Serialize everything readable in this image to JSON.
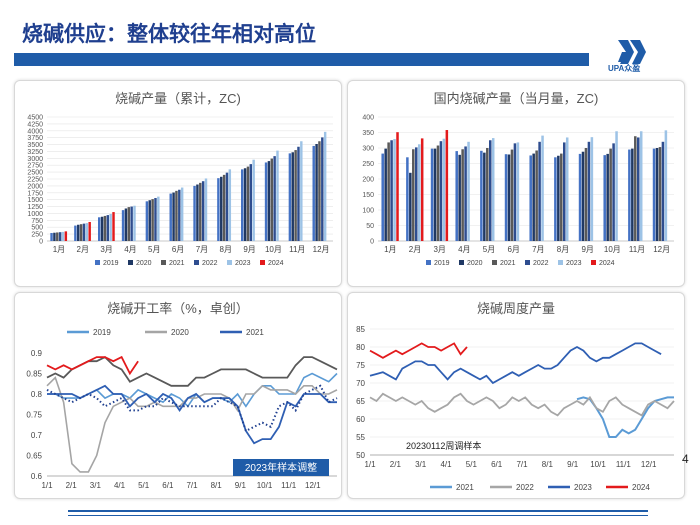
{
  "page": {
    "title": "烧碱供应：整体较往年相对高位",
    "logo_text": "UPA众盈",
    "page_number": "4"
  },
  "colors": {
    "c2019": "#4472c4",
    "c2020": "#1f3864",
    "c2021": "#595959",
    "c2022": "#2e4d8f",
    "c2023": "#9dc3e6",
    "c2024": "#e31a1c",
    "line2021": "#5b9bd5",
    "line2022": "#a6a6a6",
    "line2023": "#2f5fb3",
    "line2024": "#e31a1c",
    "line2020": "#a5a5a5",
    "line2019": "#5b9bd5"
  },
  "chart_data": [
    {
      "id": "cumulative",
      "type": "bar",
      "title": "烧碱产量（累计，ZC)",
      "categories": [
        "1月",
        "2月",
        "3月",
        "4月",
        "5月",
        "6月",
        "7月",
        "8月",
        "9月",
        "10月",
        "11月",
        "12月"
      ],
      "ylim": [
        0,
        4500
      ],
      "yticks": [
        0,
        250,
        500,
        750,
        1000,
        1250,
        1500,
        1750,
        2000,
        2250,
        2500,
        2750,
        3000,
        3250,
        3500,
        3750,
        4000,
        4250,
        4500
      ],
      "series": [
        {
          "name": "2019",
          "values": [
            290,
            560,
            860,
            1120,
            1440,
            1720,
            2000,
            2280,
            2600,
            2850,
            3180,
            3450
          ]
        },
        {
          "name": "2020",
          "values": [
            300,
            590,
            880,
            1180,
            1480,
            1760,
            2050,
            2330,
            2640,
            2900,
            3220,
            3520
          ]
        },
        {
          "name": "2021",
          "values": [
            310,
            610,
            910,
            1230,
            1520,
            1820,
            2110,
            2400,
            2700,
            2990,
            3300,
            3620
          ]
        },
        {
          "name": "2022",
          "values": [
            320,
            630,
            940,
            1250,
            1560,
            1860,
            2170,
            2480,
            2790,
            3080,
            3420,
            3760
          ]
        },
        {
          "name": "2023",
          "values": [
            330,
            650,
            980,
            1280,
            1610,
            1940,
            2270,
            2600,
            2950,
            3280,
            3620,
            3960
          ]
        },
        {
          "name": "2024",
          "values": [
            350,
            690,
            1050,
            null,
            null,
            null,
            null,
            null,
            null,
            null,
            null,
            null
          ]
        }
      ],
      "legend_position": "bottom"
    },
    {
      "id": "monthly",
      "type": "bar",
      "title": "国内烧碱产量（当月量，ZC)",
      "categories": [
        "1月",
        "2月",
        "3月",
        "4月",
        "5月",
        "6月",
        "7月",
        "8月",
        "9月",
        "10月",
        "11月",
        "12月"
      ],
      "ylim": [
        0,
        400
      ],
      "yticks": [
        0,
        50,
        100,
        150,
        200,
        250,
        300,
        350,
        400
      ],
      "series": [
        {
          "name": "2019",
          "values": [
            282,
            270,
            298,
            290,
            291,
            280,
            276,
            270,
            281,
            277,
            295,
            298
          ]
        },
        {
          "name": "2020",
          "values": [
            298,
            220,
            298,
            278,
            285,
            279,
            282,
            275,
            288,
            281,
            298,
            300
          ]
        },
        {
          "name": "2021",
          "values": [
            318,
            296,
            308,
            296,
            300,
            295,
            292,
            282,
            300,
            298,
            338,
            303
          ]
        },
        {
          "name": "2022",
          "values": [
            325,
            302,
            322,
            305,
            325,
            315,
            320,
            318,
            320,
            315,
            334,
            320
          ]
        },
        {
          "name": "2023",
          "values": [
            329,
            312,
            330,
            320,
            332,
            318,
            340,
            334,
            335,
            354,
            354,
            357
          ]
        },
        {
          "name": "2024",
          "values": [
            351,
            331,
            358,
            null,
            null,
            null,
            null,
            null,
            null,
            null,
            null,
            null
          ]
        }
      ],
      "legend_position": "bottom"
    },
    {
      "id": "operating_rate",
      "type": "line",
      "title": "烧碱开工率（%，卓创）",
      "x_ticks": [
        "1/1",
        "2/1",
        "3/1",
        "4/1",
        "5/1",
        "6/1",
        "7/1",
        "8/1",
        "9/1",
        "10/1",
        "11/1",
        "12/1"
      ],
      "ylim": [
        0.6,
        0.9
      ],
      "yticks": [
        0.6,
        0.65,
        0.7,
        0.75,
        0.8,
        0.85,
        0.9
      ],
      "legend": [
        "2019",
        "2020",
        "2021"
      ],
      "annotation": "2023年样本调整",
      "series": [
        {
          "name": "2019",
          "style": "solid",
          "values": [
            0.8,
            0.8,
            0.79,
            0.79,
            0.79,
            0.8,
            0.81,
            0.79,
            0.8,
            0.8,
            0.79,
            0.81,
            0.8,
            0.79,
            0.78,
            0.8,
            0.79,
            0.77,
            0.8,
            0.78,
            0.79,
            0.79,
            0.78,
            0.8,
            0.77,
            0.8,
            0.82,
            0.82,
            0.8,
            0.8,
            0.8,
            0.84,
            0.85,
            0.84,
            0.83,
            0.85
          ]
        },
        {
          "name": "2020",
          "style": "solid",
          "values": [
            0.82,
            0.84,
            0.78,
            0.63,
            0.61,
            0.61,
            0.65,
            0.73,
            0.77,
            0.78,
            0.79,
            0.77,
            0.77,
            0.78,
            0.77,
            0.77,
            0.77,
            0.79,
            0.79,
            0.8,
            0.8,
            0.8,
            0.79,
            0.76,
            0.8,
            0.8,
            0.82,
            0.81,
            0.81,
            0.81,
            0.8,
            0.82,
            0.82,
            0.8,
            0.8,
            0.81
          ]
        },
        {
          "name": "2021",
          "style": "solid",
          "values": [
            0.8,
            0.8,
            0.8,
            0.8,
            0.79,
            0.8,
            0.81,
            0.82,
            0.8,
            0.8,
            0.77,
            0.79,
            0.8,
            0.78,
            0.8,
            0.79,
            0.76,
            0.79,
            0.8,
            0.78,
            0.79,
            0.79,
            0.79,
            0.77,
            0.71,
            0.68,
            0.69,
            0.69,
            0.72,
            0.78,
            0.77,
            0.8,
            0.8,
            0.8,
            0.78,
            0.78
          ]
        },
        {
          "name": "2022",
          "style": "solid",
          "values": [
            0.84,
            0.85,
            0.84,
            0.86,
            0.87,
            0.88,
            0.88,
            0.89,
            0.87,
            0.86,
            0.83,
            0.84,
            0.85,
            0.84,
            0.83,
            0.82,
            0.82,
            0.82,
            0.84,
            0.84,
            0.85,
            0.86,
            0.86,
            0.86,
            0.86,
            0.85,
            0.84,
            0.84,
            0.84,
            0.84,
            0.87,
            0.89,
            0.89,
            0.88,
            0.87,
            0.86
          ]
        },
        {
          "name": "2023",
          "style": "dotted",
          "values": [
            0.81,
            0.8,
            0.79,
            0.78,
            0.79,
            0.8,
            0.79,
            0.77,
            0.78,
            0.79,
            0.76,
            0.76,
            0.77,
            0.77,
            0.79,
            0.78,
            0.77,
            0.77,
            0.77,
            0.77,
            0.77,
            0.79,
            0.78,
            0.77,
            0.71,
            0.72,
            0.73,
            0.72,
            0.77,
            0.78,
            0.76,
            0.8,
            0.81,
            0.82,
            0.78,
            0.79
          ]
        },
        {
          "name": "2024",
          "style": "red",
          "values": [
            0.87,
            0.86,
            0.87,
            0.86,
            0.87,
            0.88,
            0.89,
            0.89,
            0.88,
            0.89,
            0.85,
            0.88
          ]
        }
      ]
    },
    {
      "id": "weekly_output",
      "type": "line",
      "title": "烧碱周度产量",
      "x_ticks": [
        "1/1",
        "2/1",
        "3/1",
        "4/1",
        "5/1",
        "6/1",
        "7/1",
        "8/1",
        "9/1",
        "10/1",
        "11/1",
        "12/1"
      ],
      "ylim": [
        50,
        85
      ],
      "yticks": [
        50,
        55,
        60,
        65,
        70,
        75,
        80,
        85
      ],
      "annotation": "20230112周调样本",
      "legend": [
        "2021",
        "2022",
        "2023",
        "2024"
      ],
      "series": [
        {
          "name": "2021",
          "values": [
            null,
            null,
            null,
            null,
            null,
            null,
            null,
            null,
            null,
            null,
            null,
            null,
            null,
            null,
            null,
            null,
            null,
            null,
            null,
            null,
            null,
            null,
            null,
            null,
            null,
            null,
            null,
            null,
            null,
            null,
            null,
            null,
            65.5,
            66,
            65.5,
            63,
            60,
            55,
            55,
            57,
            56,
            57,
            60,
            63,
            65,
            65.5,
            66,
            66
          ]
        },
        {
          "name": "2022",
          "values": [
            66,
            65,
            67,
            66,
            65,
            66,
            65,
            64,
            65,
            63,
            62,
            63,
            64,
            66,
            67,
            65,
            64,
            65,
            66,
            65,
            63,
            64,
            66,
            65,
            66,
            64,
            63,
            64,
            62,
            61,
            63,
            64,
            65,
            64,
            66,
            63,
            62,
            65,
            66,
            64,
            63,
            62,
            61,
            64,
            65,
            64,
            63,
            65
          ]
        },
        {
          "name": "2023",
          "values": [
            72,
            72.5,
            73,
            72,
            71,
            74,
            75,
            76,
            76,
            75,
            75,
            73,
            71,
            73,
            74,
            73,
            72,
            71,
            72,
            70,
            71,
            72,
            73,
            72,
            73,
            74,
            75,
            74,
            74,
            75,
            77,
            79,
            80,
            79,
            77,
            76,
            77,
            77,
            78,
            79,
            80,
            81,
            81,
            80,
            79,
            78
          ]
        },
        {
          "name": "2024",
          "values": [
            79,
            78,
            77,
            78,
            79,
            78,
            79,
            80,
            81,
            80,
            80,
            79,
            80,
            81,
            78,
            80
          ]
        }
      ]
    }
  ]
}
